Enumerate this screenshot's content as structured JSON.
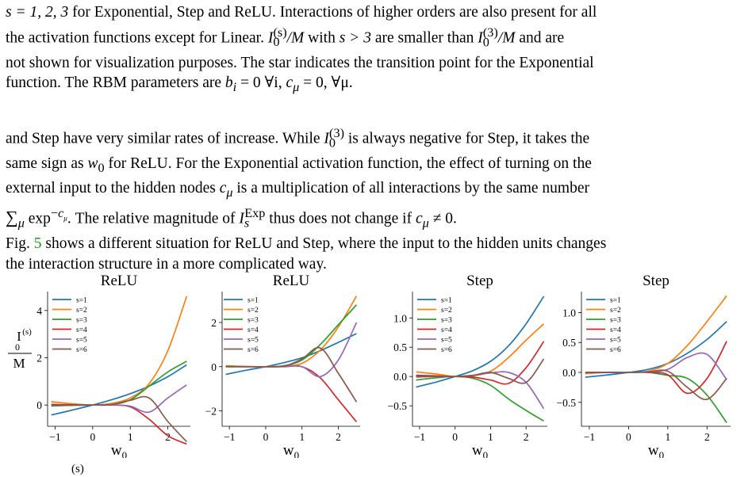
{
  "caption": {
    "s_list": "s = 1, 2, 3",
    "line1_rest": " for Exponential, Step and ReLU. Interactions of higher orders are also present for all",
    "line2_a": "the activation functions except for Linear. ",
    "line2_b": "/M",
    "line2_c": " with ",
    "line2_d": "s > 3",
    "line2_e": " are smaller than ",
    "line2_f": "/M",
    "line2_g": " and are",
    "line3": "not shown for visualization purposes. The star indicates the transition point for the Exponential",
    "line4_a": "function. The RBM parameters are ",
    "line4_b": "b",
    "line4_c": " = 0 ∀i, ",
    "line4_d": "c",
    "line4_e": " = 0, ∀μ."
  },
  "body": {
    "l1_a": "and Step have very similar rates of increase. While ",
    "l1_b": " is always negative for Step, it takes the",
    "l2_a": "same sign as ",
    "l2_b": " for ReLU. For the Exponential activation function, the effect of turning on the",
    "l3_a": "external input to the hidden nodes ",
    "l3_b": " is a multiplication of all interactions by the same number",
    "l4_a": "exp",
    "l4_b": ". The relative magnitude of ",
    "l4_c": " thus does not change if ",
    "l4_d": ".",
    "l5_a": "Fig. ",
    "l5_ref": "5",
    "l5_b": " shows a different situation for ReLU and Step, where the input to the hidden units changes",
    "l6": "the interaction structure in a more complicated way."
  },
  "footer_fragment": "(s)",
  "chart_data": [
    {
      "type": "line",
      "title": "ReLU",
      "xlabel": "w0",
      "ylabel": "I0(s)/M",
      "xlim": [
        -1.2,
        2.6
      ],
      "ylim": [
        -0.9,
        4.8
      ],
      "xticks": [
        -1,
        0,
        1,
        2
      ],
      "yticks": [
        0,
        2,
        4
      ],
      "series": [
        {
          "name": "s=1",
          "color": "#1f77b4",
          "x": [
            -1.1,
            -0.5,
            0,
            0.5,
            1,
            1.5,
            2,
            2.5
          ],
          "y": [
            -0.42,
            -0.2,
            0,
            0.22,
            0.48,
            0.8,
            1.2,
            1.7
          ]
        },
        {
          "name": "s=2",
          "color": "#ff7f0e",
          "x": [
            -1.1,
            -0.5,
            0,
            0.5,
            1,
            1.5,
            2,
            2.5
          ],
          "y": [
            0.14,
            0.05,
            0,
            0.07,
            0.3,
            0.9,
            2.3,
            4.6
          ]
        },
        {
          "name": "s=3",
          "color": "#2ca02c",
          "x": [
            -1.1,
            -0.5,
            0,
            0.5,
            1,
            1.5,
            2,
            2.5
          ],
          "y": [
            -0.04,
            -0.01,
            0,
            0.02,
            0.22,
            0.8,
            1.4,
            1.85
          ]
        },
        {
          "name": "s=4",
          "color": "#d62728",
          "x": [
            -1.1,
            -0.5,
            0,
            0.5,
            1,
            1.5,
            2,
            2.5
          ],
          "y": [
            0.03,
            0.01,
            0,
            0.0,
            -0.08,
            -0.6,
            -1.3,
            -1.65
          ]
        },
        {
          "name": "s=5",
          "color": "#9467bd",
          "x": [
            -1.1,
            -0.5,
            0,
            0.5,
            1,
            1.5,
            2,
            2.5
          ],
          "y": [
            -0.01,
            0,
            0,
            0.01,
            -0.05,
            -0.3,
            0.3,
            0.85
          ]
        },
        {
          "name": "s=6",
          "color": "#8c564b",
          "x": [
            -1.1,
            -0.5,
            0,
            0.5,
            1,
            1.5,
            2,
            2.5
          ],
          "y": [
            0,
            0,
            0,
            0.02,
            0.2,
            0.3,
            -0.7,
            -1.55
          ]
        }
      ]
    },
    {
      "type": "line",
      "title": "ReLU",
      "xlabel": "w0",
      "ylabel": "",
      "xlim": [
        -1.2,
        2.6
      ],
      "ylim": [
        -2.7,
        3.4
      ],
      "xticks": [
        -1,
        0,
        1,
        2
      ],
      "yticks": [
        -2,
        0,
        2
      ],
      "series": [
        {
          "name": "s=1",
          "color": "#1f77b4",
          "x": [
            -1.1,
            -0.5,
            0,
            0.5,
            1,
            1.5,
            2,
            2.5
          ],
          "y": [
            -0.35,
            -0.15,
            0,
            0.18,
            0.4,
            0.72,
            1.1,
            1.5
          ]
        },
        {
          "name": "s=2",
          "color": "#ff7f0e",
          "x": [
            -1.1,
            -0.5,
            0,
            0.5,
            1,
            1.5,
            2,
            2.5
          ],
          "y": [
            0.04,
            0.01,
            0,
            0.03,
            0.15,
            0.75,
            1.8,
            3.2
          ]
        },
        {
          "name": "s=3",
          "color": "#2ca02c",
          "x": [
            -1.1,
            -0.5,
            0,
            0.5,
            1,
            1.5,
            2,
            2.5
          ],
          "y": [
            0.02,
            0,
            0,
            0.04,
            0.3,
            1.0,
            1.9,
            2.8
          ]
        },
        {
          "name": "s=4",
          "color": "#d62728",
          "x": [
            -1.1,
            -0.5,
            0,
            0.5,
            1,
            1.5,
            2,
            2.5
          ],
          "y": [
            0,
            0,
            0,
            0.0,
            0.0,
            -0.5,
            -1.5,
            -2.5
          ]
        },
        {
          "name": "s=5",
          "color": "#9467bd",
          "x": [
            -1.1,
            -0.5,
            0,
            0.5,
            1,
            1.5,
            2,
            2.5
          ],
          "y": [
            0,
            0,
            0,
            0.01,
            0.0,
            -0.45,
            0.3,
            2.0
          ]
        },
        {
          "name": "s=6",
          "color": "#8c564b",
          "x": [
            -1.1,
            -0.5,
            0,
            0.5,
            1,
            1.5,
            2,
            2.5
          ],
          "y": [
            0,
            0,
            0,
            0.02,
            0.35,
            0.85,
            -0.3,
            -1.6
          ]
        }
      ]
    },
    {
      "type": "line",
      "title": "Step",
      "xlabel": "w0",
      "ylabel": "",
      "xlim": [
        -1.2,
        2.6
      ],
      "ylim": [
        -0.85,
        1.45
      ],
      "xticks": [
        -1,
        0,
        1,
        2
      ],
      "yticks": [
        -0.5,
        0.0,
        0.5,
        1.0
      ],
      "series": [
        {
          "name": "s=1",
          "color": "#1f77b4",
          "x": [
            -1.1,
            -0.5,
            0,
            0.5,
            1,
            1.5,
            2,
            2.5
          ],
          "y": [
            -0.18,
            -0.09,
            0,
            0.1,
            0.26,
            0.52,
            0.9,
            1.37
          ]
        },
        {
          "name": "s=2",
          "color": "#ff7f0e",
          "x": [
            -1.1,
            -0.5,
            0,
            0.5,
            1,
            1.5,
            2,
            2.5
          ],
          "y": [
            0.08,
            0.04,
            0,
            0.01,
            0.09,
            0.32,
            0.62,
            0.9
          ]
        },
        {
          "name": "s=3",
          "color": "#2ca02c",
          "x": [
            -1.1,
            -0.5,
            0,
            0.5,
            1,
            1.5,
            2,
            2.5
          ],
          "y": [
            -0.06,
            -0.02,
            0,
            -0.03,
            -0.15,
            -0.38,
            -0.58,
            -0.76
          ]
        },
        {
          "name": "s=4",
          "color": "#d62728",
          "x": [
            -1.1,
            -0.5,
            0,
            0.5,
            1,
            1.5,
            2,
            2.5
          ],
          "y": [
            0.02,
            0.01,
            0,
            -0.01,
            -0.06,
            -0.12,
            0.15,
            0.6
          ]
        },
        {
          "name": "s=5",
          "color": "#9467bd",
          "x": [
            -1.1,
            -0.5,
            0,
            0.5,
            1,
            1.5,
            2,
            2.5
          ],
          "y": [
            -0.01,
            0,
            0,
            0.02,
            0.06,
            0.07,
            -0.1,
            -0.55
          ]
        },
        {
          "name": "s=6",
          "color": "#8c564b",
          "x": [
            -1.1,
            -0.5,
            0,
            0.5,
            1,
            1.5,
            2,
            2.5
          ],
          "y": [
            0,
            0,
            0,
            0.02,
            0.07,
            -0.03,
            -0.1,
            0.3
          ]
        }
      ]
    },
    {
      "type": "line",
      "title": "Step",
      "xlabel": "w0",
      "ylabel": "",
      "xlim": [
        -1.2,
        2.6
      ],
      "ylim": [
        -0.9,
        1.35
      ],
      "xticks": [
        -1,
        0,
        1,
        2
      ],
      "yticks": [
        -0.5,
        0.0,
        0.5,
        1.0
      ],
      "series": [
        {
          "name": "s=1",
          "color": "#1f77b4",
          "x": [
            -1.1,
            -0.5,
            0,
            0.5,
            1,
            1.5,
            2,
            2.5
          ],
          "y": [
            -0.08,
            -0.04,
            0,
            0.05,
            0.15,
            0.32,
            0.55,
            0.85
          ]
        },
        {
          "name": "s=2",
          "color": "#ff7f0e",
          "x": [
            -1.1,
            -0.5,
            0,
            0.5,
            1,
            1.5,
            2,
            2.5
          ],
          "y": [
            -0.02,
            0,
            0,
            0.02,
            0.15,
            0.45,
            0.85,
            1.28
          ]
        },
        {
          "name": "s=3",
          "color": "#2ca02c",
          "x": [
            -1.1,
            -0.5,
            0,
            0.5,
            1,
            1.5,
            2,
            2.5
          ],
          "y": [
            0,
            0,
            0,
            0.0,
            -0.05,
            -0.1,
            -0.38,
            -0.84
          ]
        },
        {
          "name": "s=4",
          "color": "#d62728",
          "x": [
            -1.1,
            -0.5,
            0,
            0.5,
            1,
            1.5,
            2,
            2.5
          ],
          "y": [
            0,
            0,
            0,
            0.0,
            -0.04,
            -0.35,
            -0.1,
            0.52
          ]
        },
        {
          "name": "s=5",
          "color": "#9467bd",
          "x": [
            -1.1,
            -0.5,
            0,
            0.5,
            1,
            1.5,
            2,
            2.5
          ],
          "y": [
            0,
            0,
            0,
            0.01,
            0.05,
            0.25,
            0.3,
            -0.12
          ]
        },
        {
          "name": "s=6",
          "color": "#8c564b",
          "x": [
            -1.1,
            -0.5,
            0,
            0.5,
            1,
            1.5,
            2,
            2.5
          ],
          "y": [
            0,
            0,
            0,
            0.01,
            0.02,
            -0.25,
            -0.45,
            -0.1
          ]
        }
      ]
    }
  ]
}
